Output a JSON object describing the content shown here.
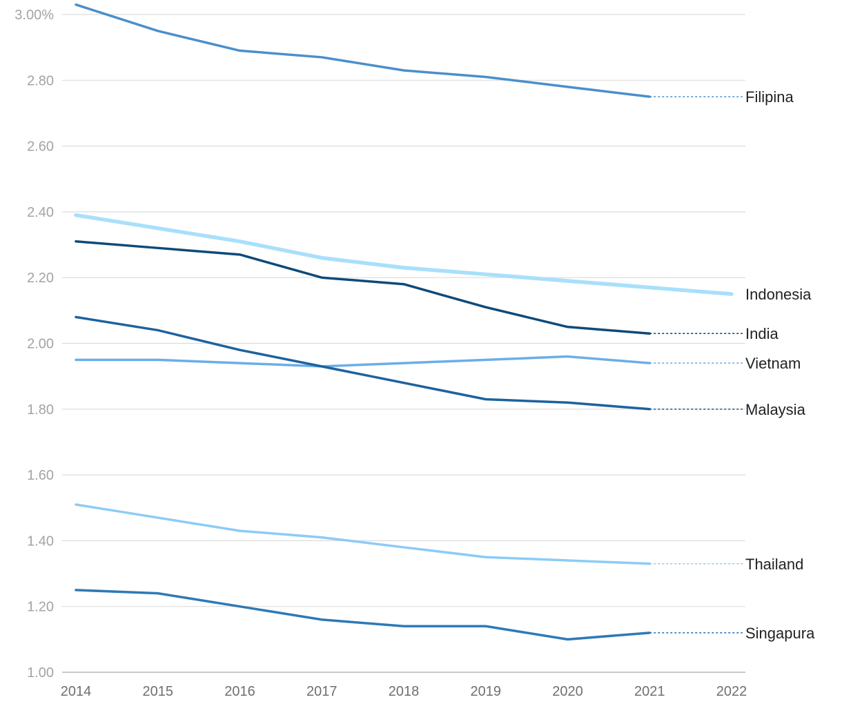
{
  "chart_data": {
    "type": "line",
    "title": "",
    "xlabel": "",
    "ylabel": "",
    "x": [
      "2014",
      "2015",
      "2016",
      "2017",
      "2018",
      "2019",
      "2020",
      "2021",
      "2022"
    ],
    "ylim": [
      1.0,
      3.0
    ],
    "yticks": [
      {
        "value": 3.0,
        "label": "3.00%"
      },
      {
        "value": 2.8,
        "label": "2.80"
      },
      {
        "value": 2.6,
        "label": "2.60"
      },
      {
        "value": 2.4,
        "label": "2.40"
      },
      {
        "value": 2.2,
        "label": "2.20"
      },
      {
        "value": 2.0,
        "label": "2.00"
      },
      {
        "value": 1.8,
        "label": "1.80"
      },
      {
        "value": 1.6,
        "label": "1.60"
      },
      {
        "value": 1.4,
        "label": "1.40"
      },
      {
        "value": 1.2,
        "label": "1.20"
      },
      {
        "value": 1.0,
        "label": "1.00"
      }
    ],
    "grid": true,
    "legend": "direct labels at right end of lines",
    "series": [
      {
        "name": "Filipina",
        "color": "#4a8fcb",
        "values": [
          3.03,
          2.95,
          2.89,
          2.87,
          2.83,
          2.81,
          2.78,
          2.75,
          null
        ],
        "dotted_extension": true
      },
      {
        "name": "Indonesia",
        "color": "#a8e0fb",
        "values": [
          2.39,
          2.35,
          2.31,
          2.26,
          2.23,
          2.21,
          2.19,
          2.17,
          2.15
        ],
        "dotted_extension": false
      },
      {
        "name": "India",
        "color": "#0d4a7a",
        "values": [
          2.31,
          2.29,
          2.27,
          2.2,
          2.18,
          2.11,
          2.05,
          2.03,
          null
        ],
        "dotted_extension": true
      },
      {
        "name": "Vietnam",
        "color": "#6aaee7",
        "values": [
          1.95,
          1.95,
          1.94,
          1.93,
          1.94,
          1.95,
          1.96,
          1.94,
          null
        ],
        "dotted_extension": true
      },
      {
        "name": "Malaysia",
        "color": "#1d629e",
        "values": [
          2.08,
          2.04,
          1.98,
          1.93,
          1.88,
          1.83,
          1.82,
          1.8,
          null
        ],
        "dotted_extension": true
      },
      {
        "name": "Thailand",
        "color": "#8ccbf7",
        "values": [
          1.51,
          1.47,
          1.43,
          1.41,
          1.38,
          1.35,
          1.34,
          1.33,
          null
        ],
        "dotted_extension": true
      },
      {
        "name": "Singapura",
        "color": "#2f79b5",
        "values": [
          1.25,
          1.24,
          1.2,
          1.16,
          1.14,
          1.14,
          1.1,
          1.12,
          null
        ],
        "dotted_extension": true
      }
    ]
  }
}
